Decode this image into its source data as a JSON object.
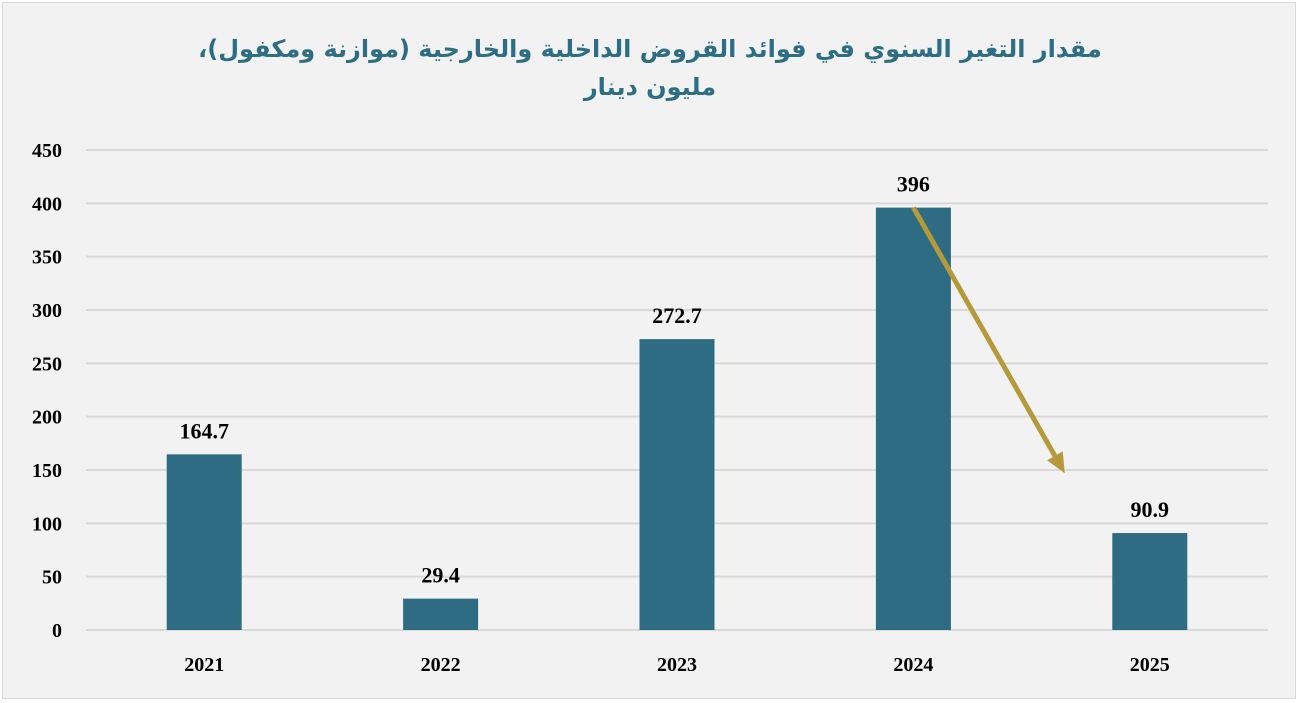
{
  "chart_data": {
    "type": "bar",
    "title_line1": "مقدار التغير السنوي في فوائد القروض الداخلية والخارجية (موازنة ومكفول)،",
    "title_line2": "مليون دينار",
    "categories": [
      "2021",
      "2022",
      "2023",
      "2024",
      "2025"
    ],
    "values": [
      164.7,
      29.4,
      272.7,
      396,
      90.9
    ],
    "data_labels": [
      "164.7",
      "29.4",
      "272.7",
      "396",
      "90.9"
    ],
    "y_ticks": [
      "0",
      "50",
      "100",
      "150",
      "200",
      "250",
      "300",
      "350",
      "400",
      "450"
    ],
    "ylim": [
      0,
      450
    ],
    "grid": true,
    "legend": "none",
    "annotation": {
      "type": "arrow",
      "from_category": "2024",
      "to_category": "2025",
      "from_value": 396,
      "to_value": 147
    },
    "colors": {
      "bar": "#2e6c84",
      "arrow": "#b59a3c",
      "grid": "#d9d9d9",
      "title": "#2e6e85"
    }
  }
}
